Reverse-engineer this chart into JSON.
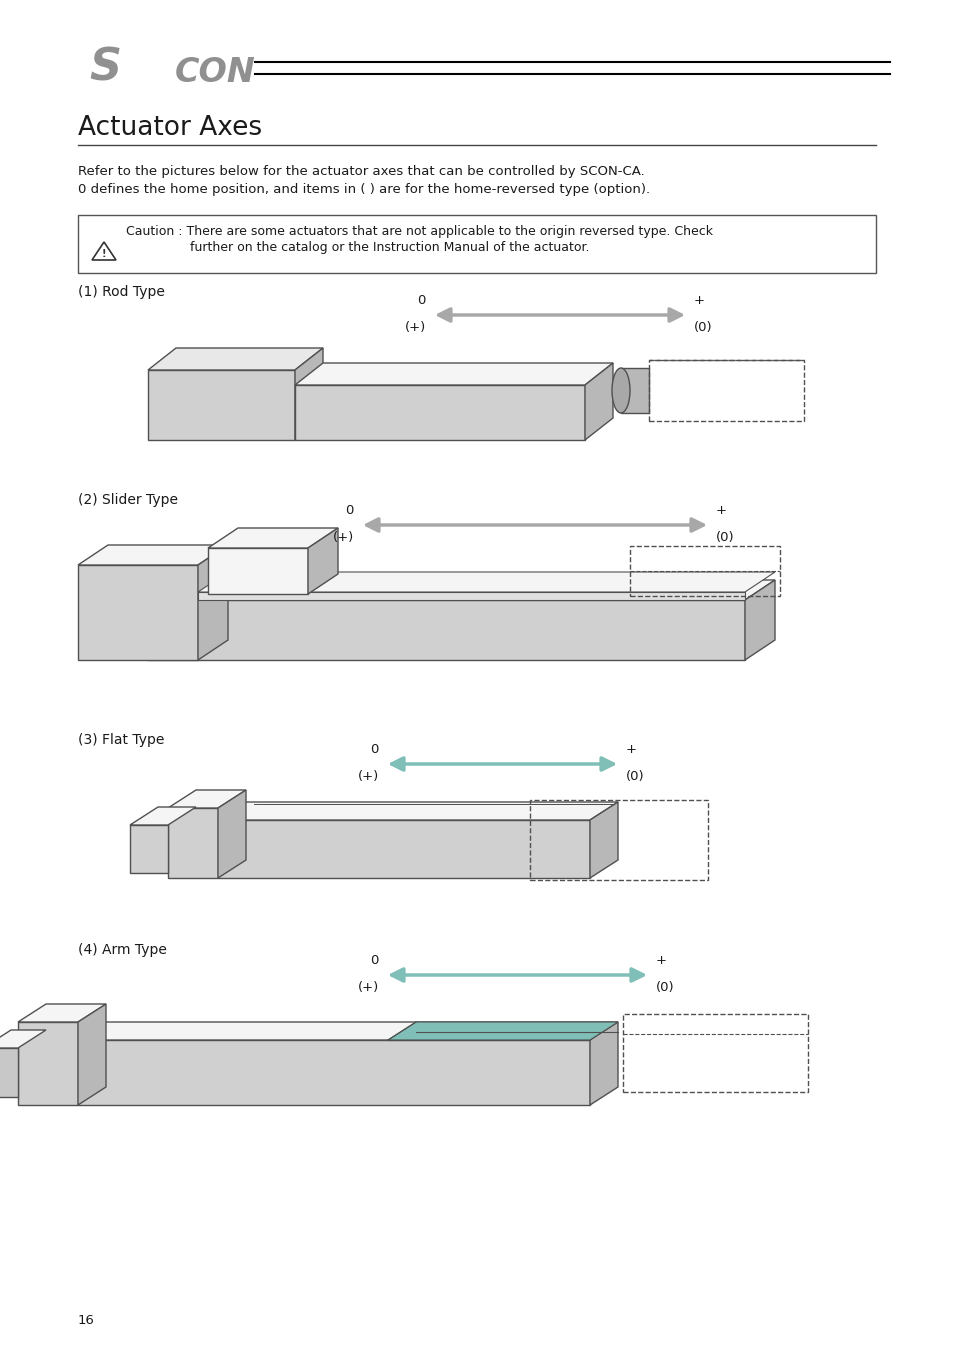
{
  "title": "Actuator Axes",
  "bg_color": "#ffffff",
  "text_color": "#1a1a1a",
  "gray_color": "#909090",
  "light_gray": "#d0d0d0",
  "medium_gray": "#a8a8a8",
  "dark_gray": "#505050",
  "top_face": "#e8e8e8",
  "right_face": "#b8b8b8",
  "white_face": "#f5f5f5",
  "teal_arrow": "#7fbfb8",
  "page_number": "16",
  "intro_line1": "Refer to the pictures below for the actuator axes that can be controlled by SCON-CA.",
  "intro_line2": "0 defines the home position, and items in ( ) are for the home-reversed type (option).",
  "caution_text1": "Caution : There are some actuators that are not applicable to the origin reversed type. Check",
  "caution_text2": "further on the catalog or the Instruction Manual of the actuator.",
  "sections": [
    "(1) Rod Type",
    "(2) Slider Type",
    "(3) Flat Type",
    "(4) Arm Type"
  ]
}
